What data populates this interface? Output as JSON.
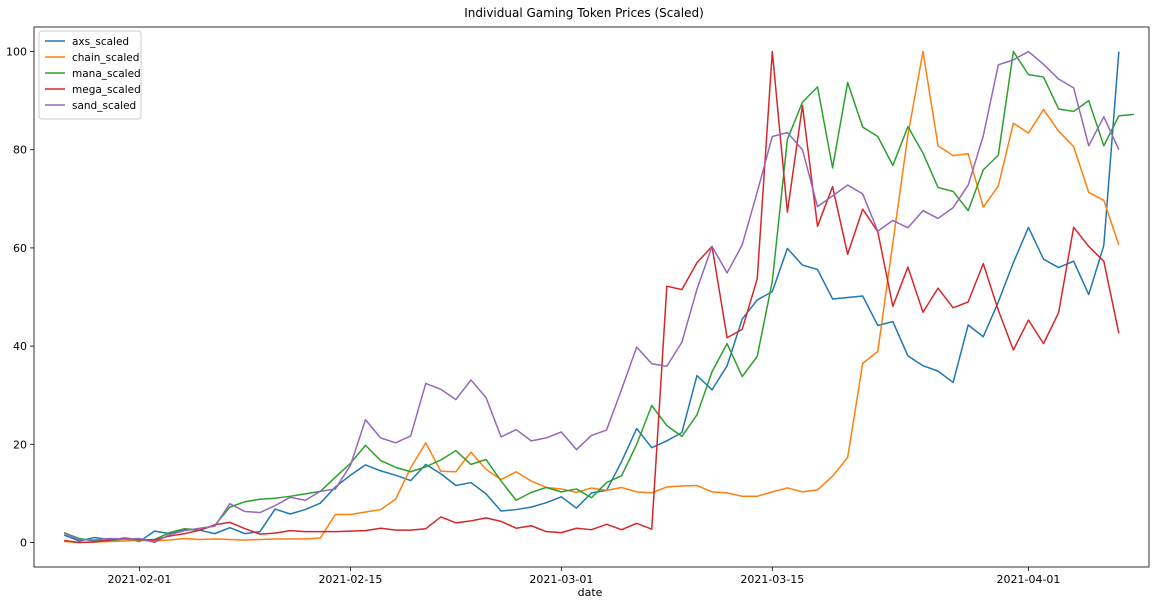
{
  "chart_data": {
    "type": "line",
    "title": "Individual Gaming Token Prices (Scaled)",
    "xlabel": "date",
    "ylabel": "",
    "x_start": "2021-01-27",
    "x_step_days": 1,
    "xlim": [
      "2021-01-25",
      "2021-04-09"
    ],
    "ylim": [
      -5,
      105
    ],
    "x_ticks": [
      "2021-02-01",
      "2021-02-15",
      "2021-03-01",
      "2021-03-15",
      "2021-04-01"
    ],
    "y_ticks": [
      0,
      20,
      40,
      60,
      80,
      100
    ],
    "grid": false,
    "legend_position": "top-left",
    "series": [
      {
        "name": "axs_scaled",
        "color": "#1f77b4",
        "values": [
          1.5,
          0.3,
          1.0,
          0.6,
          0.8,
          0.2,
          2.3,
          1.8,
          2.7,
          2.5,
          1.8,
          3.0,
          1.8,
          2.2,
          6.8,
          5.8,
          6.7,
          8.0,
          11.3,
          13.7,
          15.8,
          14.6,
          13.7,
          12.6,
          15.9,
          14.0,
          11.6,
          12.2,
          9.9,
          6.4,
          6.7,
          7.2,
          8.1,
          9.3,
          7.0,
          10.1,
          10.6,
          16.5,
          23.2,
          19.3,
          20.7,
          22.4,
          34.0,
          31.1,
          36.0,
          45.5,
          49.4,
          51.1,
          59.9,
          56.5,
          55.6,
          49.6,
          49.9,
          50.2,
          44.2,
          45.0,
          38.0,
          36.0,
          34.9,
          32.6,
          44.3,
          41.9,
          49.0,
          57.0,
          64.2,
          57.7,
          56.0,
          57.3,
          50.5,
          60.5,
          100.0
        ]
      },
      {
        "name": "chain_scaled",
        "color": "#ff7f0e",
        "values": [
          0.2,
          0.0,
          0.1,
          0.2,
          0.3,
          0.4,
          0.3,
          0.5,
          0.8,
          0.6,
          0.7,
          0.6,
          0.5,
          0.6,
          0.7,
          0.7,
          0.7,
          0.9,
          5.7,
          5.7,
          6.2,
          6.7,
          8.8,
          15.2,
          20.3,
          14.5,
          14.4,
          18.4,
          14.9,
          12.8,
          14.4,
          12.5,
          11.2,
          10.9,
          10.2,
          11.1,
          10.6,
          11.2,
          10.3,
          10.1,
          11.3,
          11.5,
          11.6,
          10.3,
          10.1,
          9.4,
          9.4,
          10.3,
          11.1,
          10.3,
          10.7,
          13.5,
          17.3,
          36.5,
          38.9,
          61.0,
          83.0,
          100.0,
          80.8,
          78.8,
          79.2,
          68.3,
          72.6,
          85.4,
          83.4,
          88.2,
          83.8,
          80.6,
          71.3,
          69.7,
          60.6
        ]
      },
      {
        "name": "mana_scaled",
        "color": "#2ca02c",
        "values": [
          2.0,
          0.8,
          0.3,
          0.4,
          0.7,
          0.5,
          0.6,
          2.0,
          2.8,
          2.5,
          3.5,
          7.2,
          8.3,
          8.8,
          9.0,
          9.4,
          9.9,
          10.4,
          13.3,
          16.1,
          19.8,
          16.7,
          15.3,
          14.4,
          15.4,
          16.8,
          18.7,
          15.9,
          16.9,
          12.5,
          8.6,
          10.2,
          11.2,
          10.3,
          10.9,
          9.1,
          12.2,
          13.6,
          20.0,
          27.9,
          23.8,
          21.6,
          26.0,
          34.8,
          40.5,
          33.8,
          37.9,
          53.2,
          82.1,
          89.7,
          92.8,
          76.3,
          93.7,
          84.6,
          82.7,
          76.8,
          84.7,
          79.3,
          72.3,
          71.5,
          67.6,
          75.9,
          78.9,
          100.0,
          95.3,
          94.8,
          88.3,
          87.8,
          90.0,
          80.8,
          86.9,
          87.2
        ]
      },
      {
        "name": "mega_scaled",
        "color": "#d62728",
        "values": [
          0.4,
          0.0,
          0.1,
          0.5,
          0.9,
          0.6,
          0.5,
          1.3,
          1.8,
          2.5,
          3.6,
          4.1,
          2.8,
          1.7,
          1.9,
          2.4,
          2.2,
          2.2,
          2.2,
          2.3,
          2.4,
          2.9,
          2.5,
          2.5,
          2.8,
          5.2,
          4.0,
          4.4,
          5.0,
          4.3,
          2.9,
          3.4,
          2.2,
          2.0,
          2.9,
          2.6,
          3.7,
          2.6,
          3.9,
          2.7,
          52.2,
          51.5,
          57.0,
          60.3,
          41.7,
          43.4,
          53.7,
          100.0,
          67.3,
          89.0,
          64.4,
          72.5,
          58.7,
          67.9,
          63.3,
          48.1,
          56.1,
          46.9,
          51.8,
          47.8,
          49.0,
          56.8,
          47.3,
          39.2,
          45.3,
          40.5,
          46.8,
          64.2,
          60.3,
          57.3,
          42.6
        ]
      },
      {
        "name": "sand_scaled",
        "color": "#9467bd",
        "values": [
          1.9,
          0.6,
          0.5,
          0.8,
          0.7,
          0.8,
          0.0,
          1.6,
          2.4,
          2.9,
          3.3,
          7.9,
          6.3,
          6.1,
          7.5,
          9.2,
          8.6,
          10.4,
          10.9,
          15.7,
          25.0,
          21.3,
          20.3,
          21.7,
          32.4,
          31.2,
          29.1,
          33.1,
          29.5,
          21.5,
          23.0,
          20.7,
          21.3,
          22.5,
          18.9,
          21.8,
          22.9,
          31.2,
          39.8,
          36.4,
          35.9,
          40.8,
          51.6,
          60.3,
          54.9,
          60.6,
          71.4,
          82.7,
          83.5,
          80.0,
          68.4,
          70.6,
          72.8,
          71.0,
          63.4,
          65.6,
          64.1,
          67.6,
          66.0,
          68.2,
          72.8,
          82.8,
          97.3,
          98.3,
          100.0,
          97.4,
          94.4,
          92.6,
          80.8,
          86.7,
          80.0
        ]
      }
    ]
  }
}
